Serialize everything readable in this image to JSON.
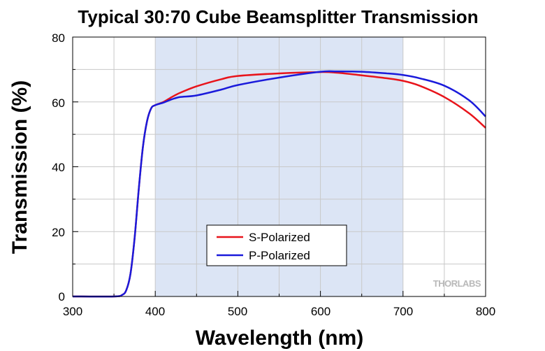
{
  "chart_data": {
    "type": "line",
    "title": "Typical 30:70 Cube Beamsplitter Transmission",
    "xlabel": "Wavelength (nm)",
    "ylabel": "Transmission (%)",
    "xlim": [
      300,
      800
    ],
    "ylim": [
      0,
      80
    ],
    "x_ticks": [
      "300",
      "400",
      "500",
      "600",
      "700",
      "800"
    ],
    "y_ticks": [
      "0",
      "20",
      "40",
      "60",
      "80"
    ],
    "grid": true,
    "highlight_band": [
      400,
      700
    ],
    "highlight_color": "#dce5f5",
    "legend_position": "lower-center",
    "series": [
      {
        "name": "S-Polarized",
        "color": "#e8141b",
        "x": [
          300,
          350,
          360,
          365,
          370,
          375,
          380,
          385,
          390,
          395,
          400,
          410,
          420,
          430,
          450,
          480,
          500,
          550,
          600,
          620,
          650,
          680,
          700,
          720,
          750,
          780,
          800
        ],
        "y": [
          0,
          0,
          0.5,
          2,
          7,
          18,
          33,
          46,
          54,
          58,
          59,
          60,
          61.5,
          62.8,
          64.8,
          67,
          68,
          68.8,
          69.2,
          69,
          68.2,
          67.3,
          66.5,
          65,
          61.5,
          56.5,
          52
        ]
      },
      {
        "name": "P-Polarized",
        "color": "#1a1adb",
        "x": [
          300,
          350,
          360,
          365,
          370,
          375,
          380,
          385,
          390,
          395,
          400,
          410,
          420,
          430,
          450,
          480,
          500,
          550,
          600,
          620,
          650,
          680,
          700,
          720,
          750,
          780,
          800
        ],
        "y": [
          0,
          0,
          0.5,
          2,
          7,
          18,
          33,
          46,
          54,
          58,
          59,
          59.8,
          60.8,
          61.5,
          62,
          63.8,
          65.2,
          67.5,
          69.3,
          69.4,
          69.3,
          68.8,
          68.3,
          67.3,
          65,
          60.5,
          55.5
        ]
      }
    ]
  },
  "watermark": "THORLABS"
}
